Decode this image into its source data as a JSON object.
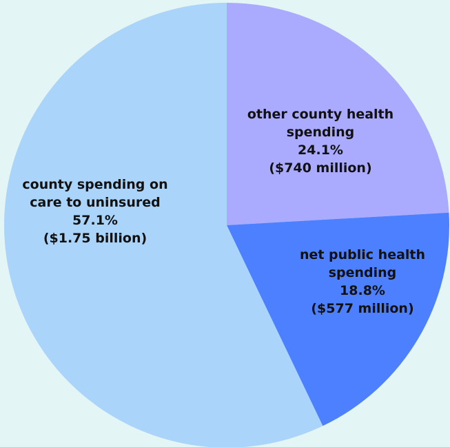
{
  "chart_data": {
    "type": "pie",
    "start_angle_deg": 0,
    "direction": "clockwise",
    "legend": "none",
    "slices": [
      {
        "key": "other",
        "value": 24.1,
        "color": "#aaaaff",
        "label_lines": [
          "other county health",
          "spending",
          "24.1%",
          "($740 million)"
        ]
      },
      {
        "key": "public",
        "value": 18.8,
        "color": "#4d80ff",
        "label_lines": [
          "net public health",
          "spending",
          "18.8%",
          "($577 million)"
        ]
      },
      {
        "key": "uninsured",
        "value": 57.1,
        "color": "#aad4fa",
        "label_lines": [
          "county spending on",
          "care to uninsured",
          "57.1%",
          "($1.75 billion)"
        ]
      }
    ]
  }
}
